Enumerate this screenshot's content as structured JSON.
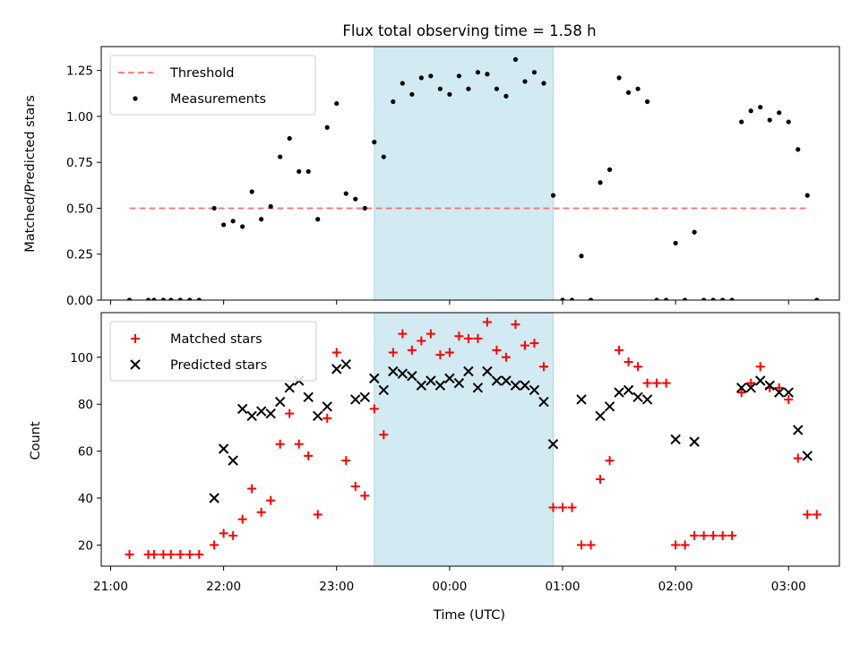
{
  "chart_data": [
    {
      "type": "scatter",
      "title": "Flux total observing time = 1.58 h",
      "xlabel": "",
      "ylabel": "Matched/Predicted stars",
      "xlim": [
        "20:55",
        "03:27"
      ],
      "ylim": [
        0,
        1.38
      ],
      "yticks": [
        "0.00",
        "0.25",
        "0.50",
        "0.75",
        "1.00",
        "1.25"
      ],
      "shaded_interval": [
        "23:20",
        "00:55"
      ],
      "shaded_color": "#add8e6",
      "threshold": {
        "name": "Threshold",
        "value": 0.5,
        "x_range": [
          "21:10",
          "03:10"
        ],
        "color": "#ff7070"
      },
      "legend": [
        "Threshold",
        "Measurements"
      ],
      "legend_position": "top-left",
      "series": [
        {
          "name": "Measurements",
          "color": "#000000",
          "points": [
            [
              "21:10",
              0.0
            ],
            [
              "21:20",
              0.0
            ],
            [
              "21:23",
              0.0
            ],
            [
              "21:28",
              0.0
            ],
            [
              "21:32",
              0.0
            ],
            [
              "21:37",
              0.0
            ],
            [
              "21:42",
              0.0
            ],
            [
              "21:47",
              0.0
            ],
            [
              "21:55",
              0.5
            ],
            [
              "22:00",
              0.41
            ],
            [
              "22:05",
              0.43
            ],
            [
              "22:10",
              0.4
            ],
            [
              "22:15",
              0.59
            ],
            [
              "22:20",
              0.44
            ],
            [
              "22:25",
              0.51
            ],
            [
              "22:30",
              0.78
            ],
            [
              "22:35",
              0.88
            ],
            [
              "22:40",
              0.7
            ],
            [
              "22:45",
              0.7
            ],
            [
              "22:50",
              0.44
            ],
            [
              "22:55",
              0.94
            ],
            [
              "23:00",
              1.07
            ],
            [
              "23:05",
              0.58
            ],
            [
              "23:10",
              0.55
            ],
            [
              "23:15",
              0.5
            ],
            [
              "23:20",
              0.86
            ],
            [
              "23:25",
              0.78
            ],
            [
              "23:30",
              1.08
            ],
            [
              "23:35",
              1.18
            ],
            [
              "23:40",
              1.12
            ],
            [
              "23:45",
              1.21
            ],
            [
              "23:50",
              1.22
            ],
            [
              "23:55",
              1.15
            ],
            [
              "00:00",
              1.12
            ],
            [
              "00:05",
              1.22
            ],
            [
              "00:10",
              1.15
            ],
            [
              "00:15",
              1.24
            ],
            [
              "00:20",
              1.23
            ],
            [
              "00:25",
              1.15
            ],
            [
              "00:30",
              1.11
            ],
            [
              "00:35",
              1.31
            ],
            [
              "00:40",
              1.19
            ],
            [
              "00:45",
              1.24
            ],
            [
              "00:50",
              1.18
            ],
            [
              "00:55",
              0.57
            ],
            [
              "01:00",
              0.0
            ],
            [
              "01:05",
              0.0
            ],
            [
              "01:10",
              0.24
            ],
            [
              "01:15",
              0.0
            ],
            [
              "01:20",
              0.64
            ],
            [
              "01:25",
              0.71
            ],
            [
              "01:30",
              1.21
            ],
            [
              "01:35",
              1.13
            ],
            [
              "01:40",
              1.15
            ],
            [
              "01:45",
              1.08
            ],
            [
              "01:50",
              0.0
            ],
            [
              "01:55",
              0.0
            ],
            [
              "02:00",
              0.31
            ],
            [
              "02:05",
              0.0
            ],
            [
              "02:10",
              0.37
            ],
            [
              "02:15",
              0.0
            ],
            [
              "02:20",
              0.0
            ],
            [
              "02:25",
              0.0
            ],
            [
              "02:30",
              0.0
            ],
            [
              "02:35",
              0.97
            ],
            [
              "02:40",
              1.03
            ],
            [
              "02:45",
              1.05
            ],
            [
              "02:50",
              0.98
            ],
            [
              "02:55",
              1.02
            ],
            [
              "03:00",
              0.97
            ],
            [
              "03:05",
              0.82
            ],
            [
              "03:10",
              0.57
            ],
            [
              "03:15",
              0.0
            ]
          ]
        }
      ]
    },
    {
      "type": "scatter",
      "title": "",
      "xlabel": "Time (UTC)",
      "ylabel": "Count",
      "xlim": [
        "20:55",
        "03:27"
      ],
      "ylim": [
        11,
        119
      ],
      "xticks": [
        "21:00",
        "22:00",
        "23:00",
        "00:00",
        "01:00",
        "02:00",
        "03:00"
      ],
      "yticks": [
        "20",
        "40",
        "60",
        "80",
        "100"
      ],
      "shaded_interval": [
        "23:20",
        "00:55"
      ],
      "shaded_color": "#add8e6",
      "legend": [
        "Matched stars",
        "Predicted stars"
      ],
      "legend_position": "top-left",
      "series": [
        {
          "name": "Matched stars",
          "marker": "plus",
          "color": "#ff0000",
          "points": [
            [
              "21:10",
              16
            ],
            [
              "21:20",
              16
            ],
            [
              "21:23",
              16
            ],
            [
              "21:28",
              16
            ],
            [
              "21:32",
              16
            ],
            [
              "21:37",
              16
            ],
            [
              "21:42",
              16
            ],
            [
              "21:47",
              16
            ],
            [
              "21:55",
              20
            ],
            [
              "22:00",
              25
            ],
            [
              "22:05",
              24
            ],
            [
              "22:10",
              31
            ],
            [
              "22:15",
              44
            ],
            [
              "22:20",
              34
            ],
            [
              "22:25",
              39
            ],
            [
              "22:30",
              63
            ],
            [
              "22:35",
              76
            ],
            [
              "22:40",
              63
            ],
            [
              "22:45",
              58
            ],
            [
              "22:50",
              33
            ],
            [
              "22:55",
              74
            ],
            [
              "23:00",
              102
            ],
            [
              "23:05",
              56
            ],
            [
              "23:10",
              45
            ],
            [
              "23:15",
              41
            ],
            [
              "23:20",
              78
            ],
            [
              "23:25",
              67
            ],
            [
              "23:30",
              102
            ],
            [
              "23:35",
              110
            ],
            [
              "23:40",
              103
            ],
            [
              "23:45",
              107
            ],
            [
              "23:50",
              110
            ],
            [
              "23:55",
              101
            ],
            [
              "00:00",
              102
            ],
            [
              "00:05",
              109
            ],
            [
              "00:10",
              108
            ],
            [
              "00:15",
              108
            ],
            [
              "00:20",
              115
            ],
            [
              "00:25",
              103
            ],
            [
              "00:30",
              100
            ],
            [
              "00:35",
              114
            ],
            [
              "00:40",
              105
            ],
            [
              "00:45",
              106
            ],
            [
              "00:50",
              96
            ],
            [
              "00:55",
              36
            ],
            [
              "01:00",
              36
            ],
            [
              "01:05",
              36
            ],
            [
              "01:10",
              20
            ],
            [
              "01:15",
              20
            ],
            [
              "01:20",
              48
            ],
            [
              "01:25",
              56
            ],
            [
              "01:30",
              103
            ],
            [
              "01:35",
              98
            ],
            [
              "01:40",
              96
            ],
            [
              "01:45",
              89
            ],
            [
              "01:50",
              89
            ],
            [
              "01:55",
              89
            ],
            [
              "02:00",
              20
            ],
            [
              "02:05",
              20
            ],
            [
              "02:10",
              24
            ],
            [
              "02:15",
              24
            ],
            [
              "02:20",
              24
            ],
            [
              "02:25",
              24
            ],
            [
              "02:30",
              24
            ],
            [
              "02:35",
              85
            ],
            [
              "02:40",
              89
            ],
            [
              "02:45",
              96
            ],
            [
              "02:50",
              87
            ],
            [
              "02:55",
              87
            ],
            [
              "03:00",
              82
            ],
            [
              "03:05",
              57
            ],
            [
              "03:10",
              33
            ],
            [
              "03:15",
              33
            ]
          ]
        },
        {
          "name": "Predicted stars",
          "marker": "x",
          "color": "#000000",
          "points": [
            [
              "21:55",
              40
            ],
            [
              "22:00",
              61
            ],
            [
              "22:05",
              56
            ],
            [
              "22:10",
              78
            ],
            [
              "22:15",
              75
            ],
            [
              "22:20",
              77
            ],
            [
              "22:25",
              76
            ],
            [
              "22:30",
              81
            ],
            [
              "22:35",
              87
            ],
            [
              "22:40",
              90
            ],
            [
              "22:45",
              83
            ],
            [
              "22:50",
              75
            ],
            [
              "22:55",
              79
            ],
            [
              "23:00",
              95
            ],
            [
              "23:05",
              97
            ],
            [
              "23:10",
              82
            ],
            [
              "23:15",
              83
            ],
            [
              "23:20",
              91
            ],
            [
              "23:25",
              86
            ],
            [
              "23:30",
              94
            ],
            [
              "23:35",
              93
            ],
            [
              "23:40",
              92
            ],
            [
              "23:45",
              88
            ],
            [
              "23:50",
              90
            ],
            [
              "23:55",
              88
            ],
            [
              "00:00",
              91
            ],
            [
              "00:05",
              89
            ],
            [
              "00:10",
              94
            ],
            [
              "00:15",
              87
            ],
            [
              "00:20",
              94
            ],
            [
              "00:25",
              90
            ],
            [
              "00:30",
              90
            ],
            [
              "00:35",
              88
            ],
            [
              "00:40",
              88
            ],
            [
              "00:45",
              86
            ],
            [
              "00:50",
              81
            ],
            [
              "00:55",
              63
            ],
            [
              "01:10",
              82
            ],
            [
              "01:20",
              75
            ],
            [
              "01:25",
              79
            ],
            [
              "01:30",
              85
            ],
            [
              "01:35",
              86
            ],
            [
              "01:40",
              83
            ],
            [
              "01:45",
              82
            ],
            [
              "02:00",
              65
            ],
            [
              "02:10",
              64
            ],
            [
              "02:35",
              87
            ],
            [
              "02:40",
              87
            ],
            [
              "02:45",
              90
            ],
            [
              "02:50",
              88
            ],
            [
              "02:55",
              85
            ],
            [
              "03:00",
              85
            ],
            [
              "03:05",
              69
            ],
            [
              "03:10",
              58
            ]
          ]
        }
      ]
    }
  ]
}
